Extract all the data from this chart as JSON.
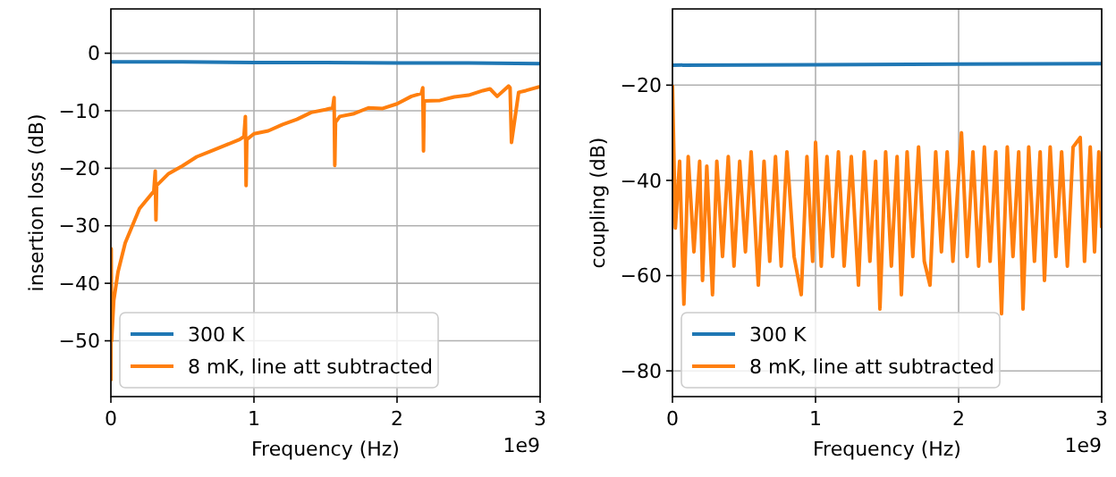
{
  "chart_data": [
    {
      "type": "line",
      "xlabel": "Frequency (Hz)",
      "ylabel": "insertion loss (dB)",
      "annotations": [
        "1e9"
      ],
      "xlim": [
        0,
        3
      ],
      "ylim": [
        -59.7,
        7.7
      ],
      "xticks": [
        0,
        1,
        2,
        3
      ],
      "yticks": [
        -50,
        -40,
        -30,
        -20,
        -10,
        0
      ],
      "grid": true,
      "legend": "bottom left",
      "line_style": "solid",
      "marker": "none",
      "series": [
        {
          "name": "300 K",
          "color": "#1f77b4",
          "x": [
            0,
            0.5,
            1,
            1.5,
            2,
            2.5,
            3
          ],
          "values": [
            -1.5,
            -1.5,
            -1.6,
            -1.6,
            -1.7,
            -1.7,
            -1.8
          ]
        },
        {
          "name": "8 mK, line att subtracted",
          "color": "#ff7f0e",
          "x": [
            0,
            0.002,
            0.005,
            0.02,
            0.05,
            0.1,
            0.2,
            0.3,
            0.31,
            0.315,
            0.32,
            0.4,
            0.5,
            0.6,
            0.7,
            0.8,
            0.9,
            0.93,
            0.94,
            0.945,
            0.95,
            1.0,
            1.1,
            1.2,
            1.3,
            1.4,
            1.5,
            1.55,
            1.56,
            1.565,
            1.57,
            1.6,
            1.7,
            1.8,
            1.9,
            2.0,
            2.1,
            2.17,
            2.18,
            2.185,
            2.19,
            2.3,
            2.4,
            2.5,
            2.6,
            2.65,
            2.7,
            2.78,
            2.79,
            2.8,
            2.85,
            2.9,
            3.0
          ],
          "values": [
            -57,
            -34,
            -50,
            -43,
            -38,
            -33,
            -27,
            -24,
            -20.5,
            -29,
            -23,
            -21,
            -19.6,
            -18,
            -17,
            -16,
            -15,
            -14.5,
            -11,
            -23,
            -15,
            -14,
            -13.5,
            -12.4,
            -11.5,
            -10.3,
            -9.8,
            -9.5,
            -7.7,
            -19.5,
            -12,
            -11,
            -10.5,
            -9.5,
            -9.6,
            -8.8,
            -7.5,
            -7,
            -6,
            -17,
            -8.3,
            -8.2,
            -7.6,
            -7.3,
            -6.5,
            -6.2,
            -7.5,
            -5.7,
            -6,
            -15.5,
            -6.8,
            -6.5,
            -5.8
          ]
        }
      ]
    },
    {
      "type": "line",
      "xlabel": "Frequency (Hz)",
      "ylabel": "coupling (dB)",
      "annotations": [
        "1e9"
      ],
      "xlim": [
        0,
        3
      ],
      "ylim": [
        -85.4,
        -4
      ],
      "xticks": [
        0,
        1,
        2,
        3
      ],
      "yticks": [
        -80,
        -60,
        -40,
        -20
      ],
      "grid": true,
      "legend": "bottom left",
      "line_style": "solid",
      "marker": "none",
      "series": [
        {
          "name": "300 K",
          "color": "#1f77b4",
          "x": [
            0,
            1,
            2,
            3
          ],
          "values": [
            -15.8,
            -15.7,
            -15.6,
            -15.5
          ]
        },
        {
          "name": "8 mK, line att subtracted",
          "color": "#ff7f0e",
          "x": [
            0,
            0.02,
            0.05,
            0.08,
            0.11,
            0.15,
            0.19,
            0.21,
            0.24,
            0.28,
            0.31,
            0.35,
            0.39,
            0.43,
            0.47,
            0.51,
            0.55,
            0.6,
            0.64,
            0.68,
            0.72,
            0.76,
            0.8,
            0.85,
            0.9,
            0.94,
            0.98,
            1.0,
            1.04,
            1.08,
            1.12,
            1.16,
            1.2,
            1.25,
            1.3,
            1.34,
            1.38,
            1.42,
            1.45,
            1.49,
            1.53,
            1.57,
            1.6,
            1.64,
            1.68,
            1.72,
            1.76,
            1.8,
            1.84,
            1.88,
            1.92,
            1.96,
            2.02,
            2.06,
            2.1,
            2.14,
            2.18,
            2.22,
            2.26,
            2.3,
            2.34,
            2.38,
            2.42,
            2.45,
            2.49,
            2.53,
            2.57,
            2.6,
            2.64,
            2.68,
            2.72,
            2.76,
            2.8,
            2.85,
            2.88,
            2.92,
            2.95,
            2.98,
            3.0
          ],
          "values": [
            -20,
            -50,
            -36,
            -66,
            -35,
            -55,
            -36,
            -61,
            -37,
            -64,
            -36,
            -56,
            -35,
            -58,
            -36,
            -55,
            -34,
            -62,
            -36,
            -57,
            -35,
            -58,
            -34,
            -56,
            -64,
            -35,
            -57,
            -32,
            -58,
            -35,
            -56,
            -34,
            -58,
            -35,
            -62,
            -34,
            -57,
            -36,
            -67,
            -34,
            -58,
            -35,
            -64,
            -34,
            -56,
            -33,
            -57,
            -62,
            -34,
            -55,
            -34,
            -57,
            -30,
            -56,
            -34,
            -58,
            -33,
            -57,
            -34,
            -68,
            -33,
            -56,
            -34,
            -67,
            -33,
            -57,
            -34,
            -61,
            -33,
            -56,
            -34,
            -58,
            -33,
            -31,
            -57,
            -33,
            -55,
            -34,
            -50
          ]
        }
      ]
    }
  ]
}
